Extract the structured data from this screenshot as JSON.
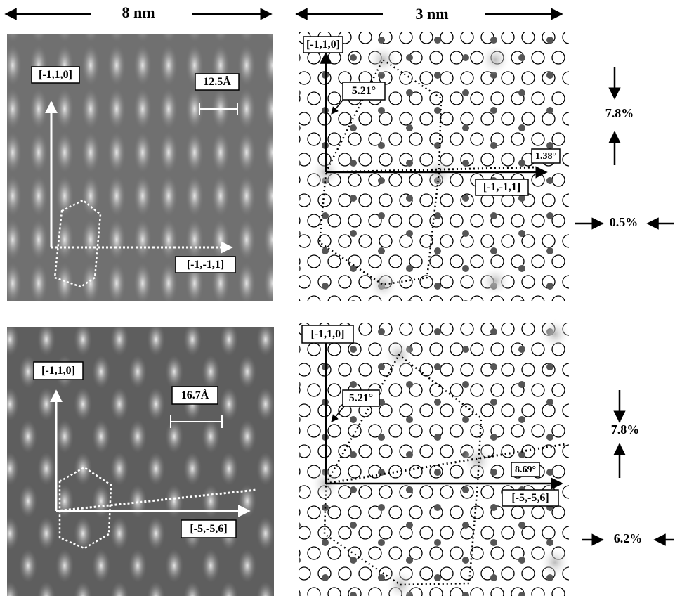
{
  "header": {
    "left_scale": "8 nm",
    "right_scale": "3 nm"
  },
  "panels": [
    {
      "stm": {
        "axis_y": "[-1,1,0]",
        "scale_bar": "12.5Å",
        "axis_x": "[-1,-1,1]"
      },
      "model": {
        "axis_y": "[-1,1,0]",
        "angle_y": "5.21°",
        "angle_x": "1.38°",
        "axis_x": "[-1,-1,1]"
      },
      "strain_vertical": "7.8%",
      "strain_horizontal": "0.5%"
    },
    {
      "stm": {
        "axis_y": "[-1,1,0]",
        "scale_bar": "16.7Å",
        "axis_x": "[-5,-5,6]"
      },
      "model": {
        "axis_y": "[-1,1,0]",
        "angle_y": "5.21°",
        "angle_x": "8.69°",
        "axis_x": "[-5,-5,6]"
      },
      "strain_vertical": "7.8%",
      "strain_horizontal": "6.2%"
    }
  ]
}
